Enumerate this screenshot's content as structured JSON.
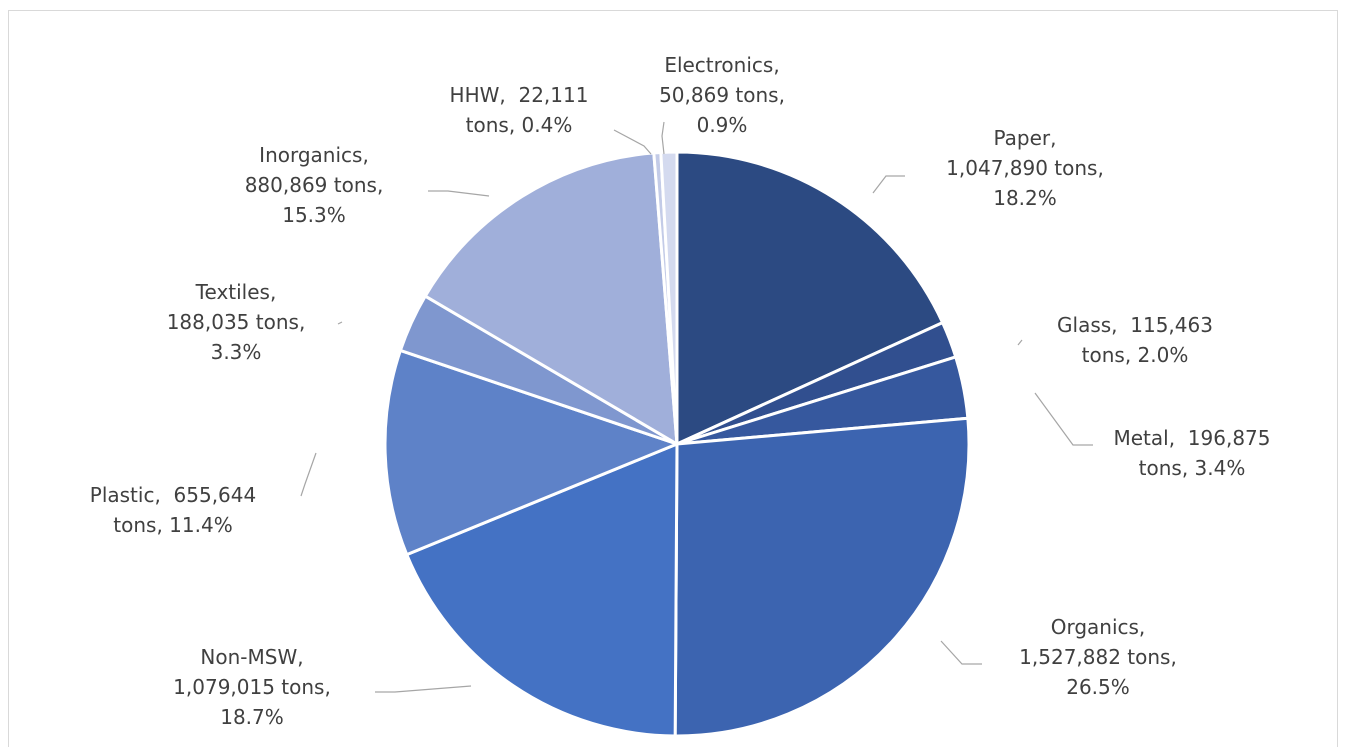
{
  "chart_data": {
    "type": "pie",
    "start_angle_deg": 0,
    "direction": "clockwise",
    "slices": [
      {
        "label": "Paper",
        "value": 1047890,
        "pct": "18.2%",
        "color": "#2c4a82",
        "text_lines": [
          "Paper,",
          "1,047,890 tons,",
          "18.2%"
        ]
      },
      {
        "label": "Glass",
        "value": 115463,
        "pct": "2.0%",
        "color": "#314f8f",
        "text_lines": [
          "Glass,  115,463",
          "tons, 2.0%"
        ]
      },
      {
        "label": "Metal",
        "value": 196875,
        "pct": "3.4%",
        "color": "#36589e",
        "text_lines": [
          "Metal,  196,875",
          "tons, 3.4%"
        ]
      },
      {
        "label": "Organics",
        "value": 1527882,
        "pct": "26.5%",
        "color": "#3c64b0",
        "text_lines": [
          "Organics,",
          "1,527,882 tons,",
          "26.5%"
        ]
      },
      {
        "label": "Non-MSW",
        "value": 1079015,
        "pct": "18.7%",
        "color": "#4472c4",
        "text_lines": [
          "Non-MSW,",
          "1,079,015 tons,",
          "18.7%"
        ]
      },
      {
        "label": "Plastic",
        "value": 655644,
        "pct": "11.4%",
        "color": "#5e82c8",
        "text_lines": [
          "Plastic,  655,644",
          "tons, 11.4%"
        ]
      },
      {
        "label": "Textiles",
        "value": 188035,
        "pct": "3.3%",
        "color": "#7f97cf",
        "text_lines": [
          "Textiles,",
          "188,035 tons,",
          "3.3%"
        ]
      },
      {
        "label": "Inorganics",
        "value": 880869,
        "pct": "15.3%",
        "color": "#a0afda",
        "text_lines": [
          "Inorganics,",
          "880,869 tons,",
          "15.3%"
        ]
      },
      {
        "label": "HHW",
        "value": 22111,
        "pct": "0.4%",
        "color": "#c3cbe7",
        "text_lines": [
          "HHW,  22,111",
          "tons, 0.4%"
        ]
      },
      {
        "label": "Electronics",
        "value": 50869,
        "pct": "0.9%",
        "color": "#d4daef",
        "text_lines": [
          "Electronics,",
          "50,869 tons,",
          "0.9%"
        ]
      }
    ]
  }
}
